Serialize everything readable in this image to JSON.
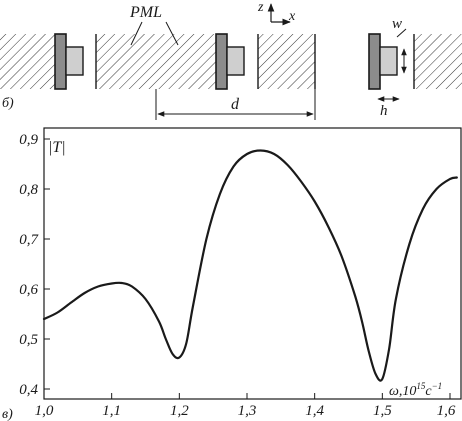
{
  "schematic": {
    "panel_label": "б)",
    "pml_label": "PML",
    "axis_z": "z",
    "axis_x": "x",
    "dim_d": "d",
    "dim_w": "w",
    "dim_h": "h"
  },
  "chart_data": {
    "type": "line",
    "panel_label": "в)",
    "ylabel": "|T|",
    "xlabel": "ω,10",
    "xlabel_exp": "15",
    "xlabel_unit": "c",
    "xlabel_unit_exp": "−1",
    "xlim": [
      1.0,
      1.6
    ],
    "ylim": [
      0.4,
      0.9
    ],
    "x_ticks": [
      "1,0",
      "1,1",
      "1,2",
      "1,3",
      "1,4",
      "1,5",
      "1,6"
    ],
    "y_ticks": [
      "0,4",
      "0,5",
      "0,6",
      "0,7",
      "0,8",
      "0,9"
    ],
    "grid": false,
    "series": [
      {
        "x": [
          1.0,
          1.02,
          1.04,
          1.06,
          1.08,
          1.1,
          1.115,
          1.13,
          1.15,
          1.17,
          1.18,
          1.19,
          1.2,
          1.21,
          1.22,
          1.24,
          1.26,
          1.28,
          1.3,
          1.32,
          1.34,
          1.36,
          1.38,
          1.4,
          1.42,
          1.44,
          1.46,
          1.47,
          1.48,
          1.49,
          1.5,
          1.51,
          1.52,
          1.54,
          1.56,
          1.58,
          1.6,
          1.61
        ],
        "y": [
          0.54,
          0.553,
          0.573,
          0.592,
          0.605,
          0.611,
          0.612,
          0.605,
          0.58,
          0.535,
          0.5,
          0.47,
          0.463,
          0.49,
          0.565,
          0.7,
          0.79,
          0.845,
          0.87,
          0.877,
          0.87,
          0.848,
          0.815,
          0.775,
          0.725,
          0.665,
          0.585,
          0.535,
          0.475,
          0.43,
          0.42,
          0.48,
          0.58,
          0.69,
          0.76,
          0.8,
          0.82,
          0.823
        ]
      }
    ]
  }
}
